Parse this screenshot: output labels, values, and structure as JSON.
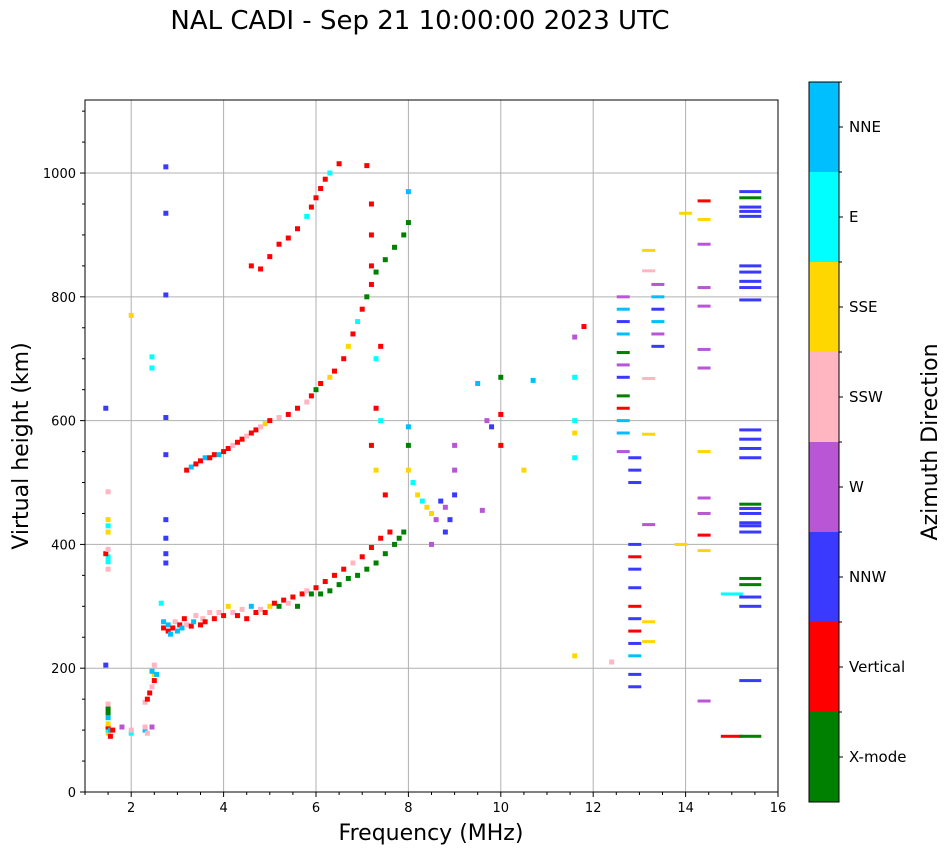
{
  "chart_data": {
    "type": "scatter",
    "title": "NAL CADI - Sep 21 10:00:00 2023 UTC",
    "xlabel": "Frequency (MHz)",
    "ylabel": "Virtual height (km)",
    "xlim": [
      1,
      16
    ],
    "ylim": [
      0,
      1118
    ],
    "xticks": [
      2,
      4,
      6,
      8,
      10,
      12,
      14,
      16
    ],
    "yticks": [
      0,
      200,
      400,
      600,
      800,
      1000
    ],
    "grid": true,
    "colorbar": {
      "title": "Azimuth Direction",
      "position": "right",
      "categories": [
        {
          "name": "X-mode",
          "color": "#008000"
        },
        {
          "name": "Vertical",
          "color": "#ff0000"
        },
        {
          "name": "NNW",
          "color": "#3a3aff"
        },
        {
          "name": "W",
          "color": "#b856d6"
        },
        {
          "name": "SSW",
          "color": "#ffb6c1"
        },
        {
          "name": "SSE",
          "color": "#ffd700"
        },
        {
          "name": "E",
          "color": "#00ffff"
        },
        {
          "name": "NNE",
          "color": "#00bfff"
        }
      ]
    },
    "series_note": "Echo points: [frequency MHz, virtual height km, azimuth category]",
    "points": [
      [
        1.5,
        95,
        "SSE"
      ],
      [
        1.5,
        100,
        "E"
      ],
      [
        1.5,
        105,
        "Vertical"
      ],
      [
        1.5,
        110,
        "SSE"
      ],
      [
        1.55,
        100,
        "NNE"
      ],
      [
        1.55,
        90,
        "Vertical"
      ],
      [
        1.6,
        100,
        "Vertical"
      ],
      [
        1.5,
        120,
        "NNE"
      ],
      [
        1.5,
        128,
        "X-mode"
      ],
      [
        1.5,
        135,
        "X-mode"
      ],
      [
        1.5,
        142,
        "SSW"
      ],
      [
        1.5,
        360,
        "SSW"
      ],
      [
        1.5,
        372,
        "E"
      ],
      [
        1.5,
        380,
        "E"
      ],
      [
        1.45,
        385,
        "Vertical"
      ],
      [
        1.5,
        392,
        "SSW"
      ],
      [
        1.5,
        420,
        "SSE"
      ],
      [
        1.5,
        430,
        "E"
      ],
      [
        1.5,
        440,
        "SSE"
      ],
      [
        1.5,
        485,
        "SSW"
      ],
      [
        1.45,
        620,
        "NNW"
      ],
      [
        1.45,
        205,
        "NNW"
      ],
      [
        1.8,
        105,
        "W"
      ],
      [
        2.0,
        95,
        "E"
      ],
      [
        2.0,
        100,
        "SSW"
      ],
      [
        2.3,
        100,
        "NNE"
      ],
      [
        2.3,
        105,
        "SSW"
      ],
      [
        2.35,
        95,
        "SSW"
      ],
      [
        2.45,
        105,
        "W"
      ],
      [
        2.3,
        145,
        "SSW"
      ],
      [
        2.35,
        150,
        "Vertical"
      ],
      [
        2.4,
        160,
        "Vertical"
      ],
      [
        2.45,
        170,
        "SSW"
      ],
      [
        2.5,
        180,
        "Vertical"
      ],
      [
        2.5,
        190,
        "SSE"
      ],
      [
        2.45,
        195,
        "NNE"
      ],
      [
        2.55,
        190,
        "NNE"
      ],
      [
        2.5,
        205,
        "SSW"
      ],
      [
        2.0,
        770,
        "SSE"
      ],
      [
        2.45,
        685,
        "E"
      ],
      [
        2.45,
        703,
        "E"
      ],
      [
        2.75,
        1010,
        "NNW"
      ],
      [
        2.75,
        935,
        "NNW"
      ],
      [
        2.75,
        803,
        "NNW"
      ],
      [
        2.75,
        605,
        "NNW"
      ],
      [
        2.75,
        545,
        "NNW"
      ],
      [
        2.75,
        440,
        "NNW"
      ],
      [
        2.75,
        410,
        "NNW"
      ],
      [
        2.75,
        385,
        "NNW"
      ],
      [
        2.75,
        370,
        "NNW"
      ],
      [
        2.65,
        305,
        "E"
      ],
      [
        2.7,
        265,
        "Vertical"
      ],
      [
        2.7,
        275,
        "NNE"
      ],
      [
        2.8,
        260,
        "Vertical"
      ],
      [
        2.8,
        270,
        "NNE"
      ],
      [
        2.85,
        255,
        "NNE"
      ],
      [
        2.9,
        265,
        "Vertical"
      ],
      [
        2.95,
        275,
        "SSW"
      ],
      [
        3.0,
        260,
        "NNE"
      ],
      [
        3.05,
        270,
        "Vertical"
      ],
      [
        3.1,
        265,
        "NNE"
      ],
      [
        3.15,
        280,
        "Vertical"
      ],
      [
        3.2,
        270,
        "SSW"
      ],
      [
        3.3,
        268,
        "Vertical"
      ],
      [
        3.35,
        275,
        "NNE"
      ],
      [
        3.4,
        285,
        "SSW"
      ],
      [
        3.5,
        270,
        "Vertical"
      ],
      [
        3.55,
        280,
        "SSW"
      ],
      [
        3.6,
        275,
        "Vertical"
      ],
      [
        3.7,
        290,
        "SSW"
      ],
      [
        3.8,
        280,
        "Vertical"
      ],
      [
        3.9,
        290,
        "SSW"
      ],
      [
        4.0,
        285,
        "Vertical"
      ],
      [
        4.1,
        300,
        "SSE"
      ],
      [
        4.2,
        290,
        "SSW"
      ],
      [
        4.3,
        285,
        "Vertical"
      ],
      [
        4.4,
        295,
        "SSW"
      ],
      [
        4.5,
        280,
        "Vertical"
      ],
      [
        4.6,
        300,
        "NNE"
      ],
      [
        4.7,
        290,
        "Vertical"
      ],
      [
        4.8,
        295,
        "SSW"
      ],
      [
        4.9,
        290,
        "Vertical"
      ],
      [
        5.0,
        300,
        "SSE"
      ],
      [
        5.1,
        305,
        "Vertical"
      ],
      [
        5.2,
        300,
        "X-mode"
      ],
      [
        5.3,
        310,
        "Vertical"
      ],
      [
        5.4,
        305,
        "SSW"
      ],
      [
        5.5,
        315,
        "Vertical"
      ],
      [
        5.6,
        300,
        "X-mode"
      ],
      [
        5.7,
        320,
        "Vertical"
      ],
      [
        5.8,
        325,
        "SSW"
      ],
      [
        5.9,
        320,
        "X-mode"
      ],
      [
        6.0,
        330,
        "Vertical"
      ],
      [
        6.1,
        320,
        "X-mode"
      ],
      [
        6.2,
        340,
        "Vertical"
      ],
      [
        6.3,
        325,
        "X-mode"
      ],
      [
        6.4,
        350,
        "Vertical"
      ],
      [
        6.5,
        335,
        "X-mode"
      ],
      [
        6.6,
        360,
        "Vertical"
      ],
      [
        6.7,
        345,
        "X-mode"
      ],
      [
        6.8,
        370,
        "SSW"
      ],
      [
        6.9,
        350,
        "X-mode"
      ],
      [
        7.0,
        380,
        "Vertical"
      ],
      [
        7.1,
        360,
        "X-mode"
      ],
      [
        7.2,
        395,
        "Vertical"
      ],
      [
        7.3,
        370,
        "X-mode"
      ],
      [
        7.4,
        410,
        "Vertical"
      ],
      [
        7.5,
        385,
        "X-mode"
      ],
      [
        7.6,
        420,
        "Vertical"
      ],
      [
        7.7,
        400,
        "X-mode"
      ],
      [
        7.8,
        410,
        "X-mode"
      ],
      [
        7.9,
        420,
        "X-mode"
      ],
      [
        3.2,
        520,
        "Vertical"
      ],
      [
        3.3,
        525,
        "NNE"
      ],
      [
        3.4,
        530,
        "Vertical"
      ],
      [
        3.5,
        535,
        "Vertical"
      ],
      [
        3.6,
        540,
        "NNE"
      ],
      [
        3.7,
        540,
        "Vertical"
      ],
      [
        3.8,
        545,
        "Vertical"
      ],
      [
        3.9,
        545,
        "NNE"
      ],
      [
        4.0,
        550,
        "Vertical"
      ],
      [
        4.1,
        555,
        "Vertical"
      ],
      [
        4.2,
        560,
        "SSW"
      ],
      [
        4.3,
        565,
        "Vertical"
      ],
      [
        4.4,
        570,
        "Vertical"
      ],
      [
        4.5,
        575,
        "SSW"
      ],
      [
        4.6,
        580,
        "Vertical"
      ],
      [
        4.7,
        585,
        "Vertical"
      ],
      [
        4.8,
        590,
        "SSW"
      ],
      [
        4.9,
        595,
        "SSE"
      ],
      [
        5.0,
        600,
        "Vertical"
      ],
      [
        5.2,
        605,
        "SSW"
      ],
      [
        5.4,
        610,
        "Vertical"
      ],
      [
        5.6,
        620,
        "Vertical"
      ],
      [
        5.8,
        630,
        "SSW"
      ],
      [
        5.9,
        640,
        "Vertical"
      ],
      [
        6.0,
        650,
        "X-mode"
      ],
      [
        6.1,
        660,
        "Vertical"
      ],
      [
        6.3,
        670,
        "SSE"
      ],
      [
        6.4,
        680,
        "Vertical"
      ],
      [
        6.6,
        700,
        "Vertical"
      ],
      [
        6.7,
        720,
        "SSE"
      ],
      [
        6.8,
        740,
        "Vertical"
      ],
      [
        6.9,
        760,
        "E"
      ],
      [
        7.0,
        780,
        "Vertical"
      ],
      [
        7.1,
        800,
        "X-mode"
      ],
      [
        7.2,
        820,
        "Vertical"
      ],
      [
        7.3,
        840,
        "X-mode"
      ],
      [
        7.5,
        860,
        "X-mode"
      ],
      [
        7.7,
        880,
        "X-mode"
      ],
      [
        7.9,
        900,
        "X-mode"
      ],
      [
        8.0,
        920,
        "X-mode"
      ],
      [
        8.0,
        970,
        "NNE"
      ],
      [
        4.6,
        850,
        "Vertical"
      ],
      [
        4.8,
        845,
        "Vertical"
      ],
      [
        5.0,
        865,
        "Vertical"
      ],
      [
        5.2,
        885,
        "Vertical"
      ],
      [
        5.4,
        895,
        "Vertical"
      ],
      [
        5.6,
        910,
        "Vertical"
      ],
      [
        5.8,
        930,
        "E"
      ],
      [
        5.9,
        945,
        "Vertical"
      ],
      [
        6.0,
        960,
        "Vertical"
      ],
      [
        6.1,
        975,
        "Vertical"
      ],
      [
        6.2,
        990,
        "Vertical"
      ],
      [
        6.3,
        1000,
        "E"
      ],
      [
        6.5,
        1015,
        "Vertical"
      ],
      [
        7.1,
        1012,
        "Vertical"
      ],
      [
        7.2,
        950,
        "Vertical"
      ],
      [
        7.2,
        900,
        "Vertical"
      ],
      [
        7.2,
        850,
        "Vertical"
      ],
      [
        7.3,
        700,
        "E"
      ],
      [
        7.4,
        720,
        "Vertical"
      ],
      [
        7.3,
        620,
        "Vertical"
      ],
      [
        7.4,
        600,
        "E"
      ],
      [
        7.2,
        560,
        "Vertical"
      ],
      [
        7.3,
        520,
        "SSE"
      ],
      [
        7.5,
        480,
        "Vertical"
      ],
      [
        8.0,
        590,
        "NNE"
      ],
      [
        8.0,
        560,
        "X-mode"
      ],
      [
        8.0,
        520,
        "SSE"
      ],
      [
        8.1,
        500,
        "E"
      ],
      [
        8.2,
        480,
        "SSE"
      ],
      [
        8.3,
        470,
        "E"
      ],
      [
        8.4,
        460,
        "SSE"
      ],
      [
        8.5,
        450,
        "SSE"
      ],
      [
        8.6,
        440,
        "W"
      ],
      [
        8.7,
        470,
        "NNW"
      ],
      [
        8.8,
        460,
        "W"
      ],
      [
        8.9,
        440,
        "NNW"
      ],
      [
        9.0,
        480,
        "NNW"
      ],
      [
        9.0,
        520,
        "W"
      ],
      [
        9.0,
        560,
        "W"
      ],
      [
        8.5,
        400,
        "W"
      ],
      [
        8.8,
        420,
        "NNW"
      ],
      [
        9.6,
        455,
        "W"
      ],
      [
        9.5,
        660,
        "NNE"
      ],
      [
        9.7,
        600,
        "W"
      ],
      [
        9.8,
        590,
        "NNW"
      ],
      [
        10.0,
        610,
        "Vertical"
      ],
      [
        10.0,
        560,
        "Vertical"
      ],
      [
        10.0,
        670,
        "X-mode"
      ],
      [
        10.7,
        665,
        "NNE"
      ],
      [
        10.5,
        520,
        "SSE"
      ],
      [
        11.6,
        735,
        "W"
      ],
      [
        11.8,
        752,
        "Vertical"
      ],
      [
        11.6,
        670,
        "E"
      ],
      [
        11.6,
        600,
        "E"
      ],
      [
        11.6,
        580,
        "SSE"
      ],
      [
        11.6,
        540,
        "E"
      ],
      [
        11.6,
        220,
        "SSE"
      ],
      [
        12.4,
        210,
        "SSW"
      ],
      [
        12.65,
        800,
        "W"
      ],
      [
        12.65,
        780,
        "NNE"
      ],
      [
        12.65,
        760,
        "NNW"
      ],
      [
        12.65,
        740,
        "NNE"
      ],
      [
        12.65,
        710,
        "X-mode"
      ],
      [
        12.65,
        690,
        "W"
      ],
      [
        12.65,
        670,
        "NNW"
      ],
      [
        12.65,
        640,
        "X-mode"
      ],
      [
        12.65,
        620,
        "Vertical"
      ],
      [
        12.65,
        600,
        "NNE"
      ],
      [
        12.65,
        580,
        "NNE"
      ],
      [
        12.65,
        550,
        "W"
      ],
      [
        12.9,
        540,
        "NNW"
      ],
      [
        12.9,
        520,
        "NNW"
      ],
      [
        12.9,
        500,
        "NNW"
      ],
      [
        12.9,
        400,
        "NNW"
      ],
      [
        12.9,
        380,
        "Vertical"
      ],
      [
        12.9,
        360,
        "NNW"
      ],
      [
        12.9,
        330,
        "NNW"
      ],
      [
        12.9,
        300,
        "Vertical"
      ],
      [
        12.9,
        280,
        "NNW"
      ],
      [
        12.9,
        260,
        "Vertical"
      ],
      [
        12.9,
        240,
        "NNW"
      ],
      [
        12.9,
        220,
        "NNE"
      ],
      [
        12.9,
        190,
        "NNW"
      ],
      [
        12.9,
        170,
        "NNW"
      ],
      [
        13.2,
        875,
        "SSE"
      ],
      [
        13.2,
        842,
        "SSW"
      ],
      [
        13.2,
        668,
        "SSW"
      ],
      [
        13.2,
        578,
        "SSE"
      ],
      [
        13.2,
        432,
        "W"
      ],
      [
        13.2,
        275,
        "SSE"
      ],
      [
        13.2,
        243,
        "SSE"
      ],
      [
        13.9,
        400,
        "SSE"
      ],
      [
        13.4,
        820,
        "W"
      ],
      [
        13.4,
        800,
        "NNE"
      ],
      [
        13.4,
        780,
        "NNW"
      ],
      [
        13.4,
        760,
        "NNE"
      ],
      [
        13.4,
        740,
        "W"
      ],
      [
        13.4,
        720,
        "NNW"
      ],
      [
        14.0,
        935,
        "SSE"
      ],
      [
        14.4,
        955,
        "Vertical"
      ],
      [
        14.4,
        925,
        "SSE"
      ],
      [
        14.4,
        885,
        "W"
      ],
      [
        14.4,
        815,
        "W"
      ],
      [
        14.4,
        785,
        "W"
      ],
      [
        14.4,
        715,
        "W"
      ],
      [
        14.4,
        685,
        "W"
      ],
      [
        14.4,
        550,
        "SSE"
      ],
      [
        14.4,
        475,
        "W"
      ],
      [
        14.4,
        450,
        "W"
      ],
      [
        14.4,
        415,
        "Vertical"
      ],
      [
        14.4,
        390,
        "SSE"
      ],
      [
        14.4,
        147,
        "W"
      ],
      [
        15.0,
        320,
        "E"
      ],
      [
        15.0,
        90,
        "Vertical"
      ],
      [
        15.4,
        970,
        "NNW"
      ],
      [
        15.4,
        960,
        "X-mode"
      ],
      [
        15.4,
        945,
        "NNW"
      ],
      [
        15.4,
        938,
        "NNW"
      ],
      [
        15.4,
        930,
        "NNW"
      ],
      [
        15.4,
        850,
        "NNW"
      ],
      [
        15.4,
        840,
        "NNW"
      ],
      [
        15.4,
        825,
        "NNW"
      ],
      [
        15.4,
        815,
        "NNW"
      ],
      [
        15.4,
        795,
        "NNW"
      ],
      [
        15.4,
        585,
        "NNW"
      ],
      [
        15.4,
        570,
        "NNW"
      ],
      [
        15.4,
        555,
        "NNW"
      ],
      [
        15.4,
        540,
        "NNW"
      ],
      [
        15.4,
        465,
        "X-mode"
      ],
      [
        15.4,
        458,
        "NNW"
      ],
      [
        15.4,
        450,
        "NNW"
      ],
      [
        15.4,
        435,
        "NNW"
      ],
      [
        15.4,
        430,
        "NNW"
      ],
      [
        15.4,
        420,
        "NNW"
      ],
      [
        15.4,
        345,
        "X-mode"
      ],
      [
        15.4,
        335,
        "X-mode"
      ],
      [
        15.4,
        315,
        "NNW"
      ],
      [
        15.4,
        300,
        "NNW"
      ],
      [
        15.4,
        180,
        "NNW"
      ],
      [
        15.4,
        90,
        "X-mode"
      ]
    ]
  }
}
